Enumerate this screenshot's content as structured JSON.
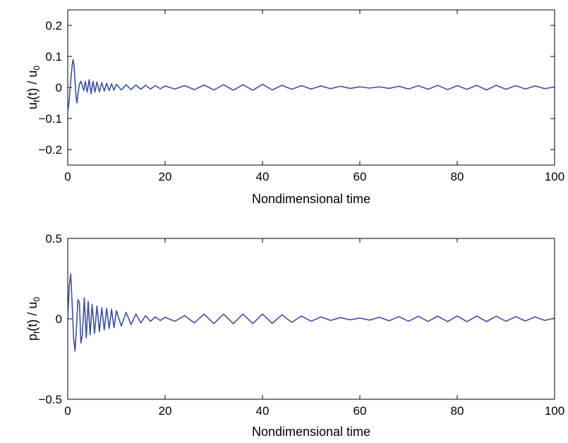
{
  "chart_data": [
    {
      "type": "line",
      "xlabel": "Nondimensional time",
      "ylabel": {
        "main": "u",
        "sub1": "f",
        "mid": "(t) / u",
        "sub2": "0"
      },
      "xlim": [
        0,
        100
      ],
      "ylim": [
        -0.25,
        0.25
      ],
      "xticks": [
        0,
        20,
        40,
        60,
        80,
        100
      ],
      "yticks": [
        -0.2,
        -0.1,
        0,
        0.1,
        0.2
      ],
      "xtick_labels": [
        "0",
        "20",
        "40",
        "60",
        "80",
        "100"
      ],
      "ytick_labels": [
        "−0.2",
        "−0.1",
        "0",
        "0.1",
        "0.2"
      ],
      "grid": false,
      "color": "#3b4fa8",
      "series": [
        {
          "x": [
            0,
            0.3,
            0.6,
            0.9,
            1.1,
            1.3,
            1.5,
            1.7,
            1.9,
            2.1,
            2.4,
            2.7,
            3.0,
            3.3,
            3.6,
            4.0,
            4.4,
            4.8,
            5.2,
            5.6,
            6.0,
            6.5,
            7.0,
            7.5,
            8.0,
            8.5,
            9.0,
            9.5,
            10.0,
            11.0,
            12.0,
            13.0,
            14.0,
            15.0,
            16.0,
            17.0,
            18.0,
            19.0,
            20.0,
            22.0,
            24.0,
            26.0,
            28.0,
            30.0,
            32.0,
            34.0,
            36.0,
            38.0,
            40.0,
            42.0,
            44.0,
            46.0,
            48.0,
            50.0,
            52.0,
            54.0,
            56.0,
            58.0,
            60.0,
            62.0,
            64.0,
            66.0,
            68.0,
            70.0,
            72.0,
            74.0,
            76.0,
            78.0,
            80.0,
            82.0,
            84.0,
            86.0,
            88.0,
            90.0,
            92.0,
            94.0,
            96.0,
            98.0,
            100.0
          ],
          "y": [
            -0.08,
            -0.04,
            0.02,
            0.07,
            0.09,
            0.07,
            0.02,
            -0.03,
            -0.05,
            -0.02,
            0.01,
            0.02,
            0.005,
            -0.01,
            0.02,
            -0.015,
            0.025,
            -0.02,
            0.02,
            -0.015,
            0.018,
            -0.014,
            0.016,
            -0.012,
            0.014,
            -0.01,
            0.012,
            -0.009,
            0.01,
            -0.008,
            0.009,
            -0.007,
            0.008,
            -0.006,
            0.007,
            -0.005,
            0.006,
            -0.004,
            0.005,
            -0.005,
            0.006,
            -0.007,
            0.008,
            -0.008,
            0.009,
            -0.009,
            0.009,
            -0.009,
            0.01,
            -0.008,
            0.007,
            -0.006,
            0.006,
            -0.005,
            0.005,
            -0.004,
            0.004,
            -0.003,
            0.002,
            -0.002,
            0.002,
            -0.003,
            0.004,
            -0.005,
            0.006,
            -0.006,
            0.007,
            -0.007,
            0.006,
            -0.006,
            0.007,
            -0.008,
            0.007,
            -0.006,
            0.006,
            -0.005,
            0.005,
            -0.004,
            0.002
          ]
        }
      ]
    },
    {
      "type": "line",
      "xlabel": "Nondimensional time",
      "ylabel": {
        "main": "p",
        "sub1": "f",
        "mid": "(t) / u",
        "sub2": "0"
      },
      "xlim": [
        0,
        100
      ],
      "ylim": [
        -0.5,
        0.5
      ],
      "xticks": [
        0,
        20,
        40,
        60,
        80,
        100
      ],
      "yticks": [
        -0.5,
        0,
        0.5
      ],
      "xtick_labels": [
        "0",
        "20",
        "40",
        "60",
        "80",
        "100"
      ],
      "ytick_labels": [
        "−0.5",
        "0",
        "0.5"
      ],
      "grid": false,
      "color": "#3b4fa8",
      "series": [
        {
          "x": [
            0,
            0.3,
            0.6,
            0.9,
            1.2,
            1.5,
            1.8,
            2.1,
            2.4,
            2.7,
            3.0,
            3.4,
            3.8,
            4.2,
            4.6,
            5.0,
            5.5,
            6.0,
            6.5,
            7.0,
            7.5,
            8.0,
            8.5,
            9.0,
            9.5,
            10.0,
            11.0,
            12.0,
            13.0,
            14.0,
            15.0,
            16.0,
            17.0,
            18.0,
            19.0,
            20.0,
            22.0,
            24.0,
            26.0,
            28.0,
            30.0,
            32.0,
            34.0,
            36.0,
            38.0,
            40.0,
            42.0,
            44.0,
            46.0,
            48.0,
            50.0,
            52.0,
            54.0,
            56.0,
            58.0,
            60.0,
            62.0,
            64.0,
            66.0,
            68.0,
            70.0,
            72.0,
            74.0,
            76.0,
            78.0,
            80.0,
            82.0,
            84.0,
            86.0,
            88.0,
            90.0,
            92.0,
            94.0,
            96.0,
            98.0,
            100.0
          ],
          "y": [
            0,
            0.2,
            0.28,
            0.1,
            -0.12,
            -0.2,
            -0.05,
            0.12,
            0.1,
            -0.15,
            -0.1,
            0.13,
            -0.12,
            0.11,
            -0.1,
            0.09,
            -0.09,
            0.08,
            -0.08,
            0.07,
            -0.07,
            0.065,
            -0.06,
            0.06,
            -0.055,
            0.05,
            -0.045,
            0.04,
            -0.035,
            0.03,
            -0.025,
            0.02,
            -0.015,
            0.012,
            -0.01,
            0.01,
            -0.015,
            0.02,
            -0.025,
            0.03,
            -0.03,
            0.03,
            -0.03,
            0.03,
            -0.03,
            0.03,
            -0.028,
            0.025,
            -0.022,
            0.018,
            -0.015,
            0.012,
            -0.01,
            0.008,
            -0.006,
            0.005,
            -0.008,
            0.01,
            -0.012,
            0.014,
            -0.015,
            0.016,
            -0.016,
            0.017,
            -0.017,
            0.018,
            -0.018,
            0.018,
            -0.017,
            0.016,
            -0.015,
            0.014,
            -0.013,
            0.012,
            -0.01,
            0.005
          ]
        }
      ]
    }
  ]
}
